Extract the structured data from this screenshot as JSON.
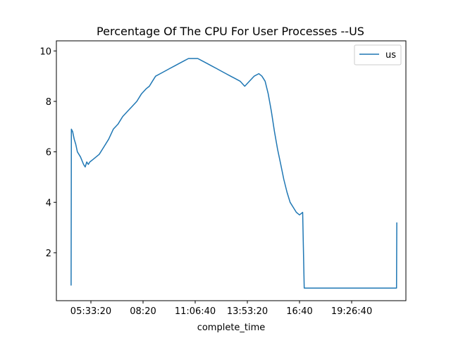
{
  "chart_data": {
    "type": "line",
    "title": "Percentage Of The CPU For User Processes --US",
    "xlabel": "complete_time",
    "ylabel": "",
    "x_type": "time",
    "xlim": [
      "03:43:00",
      "22:20:00"
    ],
    "ylim": [
      0.1,
      10.4
    ],
    "xticks": [
      "05:33:20",
      "08:20",
      "11:06:40",
      "13:53:20",
      "16:40",
      "19:26:40"
    ],
    "yticks": [
      2,
      4,
      6,
      8,
      10
    ],
    "grid": false,
    "legend": {
      "position": "top-right",
      "entries": [
        "us"
      ]
    },
    "series": [
      {
        "name": "us",
        "color": "#1f77b4",
        "x": [
          "04:30",
          "04:31",
          "04:35",
          "04:40",
          "04:45",
          "04:50",
          "04:55",
          "05:00",
          "05:10",
          "05:15",
          "05:20",
          "05:25",
          "05:30",
          "05:40",
          "05:50",
          "06:00",
          "06:15",
          "06:30",
          "06:45",
          "07:00",
          "07:15",
          "07:30",
          "07:45",
          "08:00",
          "08:15",
          "08:30",
          "08:40",
          "08:50",
          "09:00",
          "09:15",
          "09:30",
          "09:45",
          "10:00",
          "10:15",
          "10:30",
          "10:45",
          "11:00",
          "11:15",
          "11:30",
          "11:45",
          "12:00",
          "12:15",
          "12:30",
          "12:45",
          "13:00",
          "13:15",
          "13:30",
          "13:45",
          "14:00",
          "14:15",
          "14:30",
          "14:40",
          "14:50",
          "15:00",
          "15:10",
          "15:20",
          "15:30",
          "15:40",
          "15:50",
          "16:00",
          "16:10",
          "16:20",
          "16:30",
          "16:40",
          "16:50",
          "16:55",
          "17:00",
          "17:30",
          "18:00",
          "19:00",
          "20:00",
          "21:00",
          "21:50",
          "21:51"
        ],
        "values": [
          0.7,
          6.9,
          6.8,
          6.5,
          6.3,
          6.0,
          5.9,
          5.8,
          5.5,
          5.4,
          5.6,
          5.5,
          5.6,
          5.7,
          5.8,
          5.9,
          6.2,
          6.5,
          6.9,
          7.1,
          7.4,
          7.6,
          7.8,
          8.0,
          8.3,
          8.5,
          8.6,
          8.8,
          9.0,
          9.1,
          9.2,
          9.3,
          9.4,
          9.5,
          9.6,
          9.7,
          9.7,
          9.7,
          9.6,
          9.5,
          9.4,
          9.3,
          9.2,
          9.1,
          9.0,
          8.9,
          8.8,
          8.6,
          8.8,
          9.0,
          9.1,
          9.0,
          8.8,
          8.3,
          7.6,
          6.8,
          6.1,
          5.5,
          4.9,
          4.4,
          4.0,
          3.8,
          3.6,
          3.5,
          3.6,
          0.6,
          0.6,
          0.6,
          0.6,
          0.6,
          0.6,
          0.6,
          0.6,
          3.2
        ]
      }
    ]
  }
}
